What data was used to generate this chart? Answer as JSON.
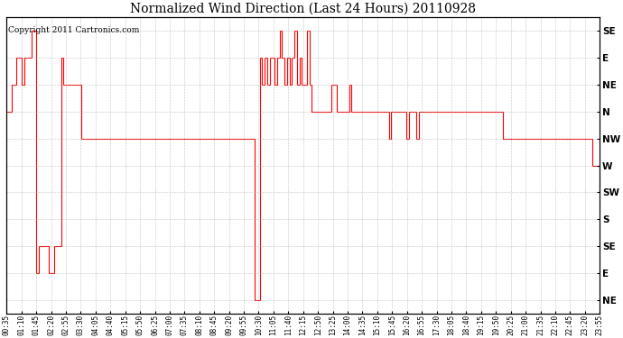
{
  "title": "Normalized Wind Direction (Last 24 Hours) 20110928",
  "copyright": "Copyright 2011 Cartronics.com",
  "line_color": "#ff0000",
  "background_color": "#ffffff",
  "grid_color": "#aaaaaa",
  "y_tick_labels_right": [
    "SE",
    "E",
    "NE",
    "N",
    "NW",
    "W",
    "SW",
    "S",
    "SE",
    "E",
    "NE"
  ],
  "y_tick_values": [
    10,
    9,
    8,
    7,
    6,
    5,
    4,
    3,
    2,
    1,
    0
  ],
  "ylim": [
    -0.5,
    10.5
  ],
  "x_tick_labels": [
    "00:35",
    "01:10",
    "01:45",
    "02:20",
    "02:55",
    "03:30",
    "04:05",
    "04:40",
    "05:15",
    "05:50",
    "06:25",
    "07:00",
    "07:35",
    "08:10",
    "08:45",
    "09:20",
    "09:55",
    "10:30",
    "11:05",
    "11:40",
    "12:15",
    "12:50",
    "13:25",
    "14:00",
    "14:35",
    "15:10",
    "15:45",
    "16:20",
    "16:55",
    "17:30",
    "18:05",
    "18:40",
    "19:15",
    "19:50",
    "20:25",
    "21:00",
    "21:35",
    "22:10",
    "22:45",
    "23:20",
    "23:55"
  ],
  "data_y": [
    7,
    7,
    8,
    8,
    9,
    9,
    8,
    9,
    9,
    9,
    10,
    10,
    1,
    2,
    2,
    2,
    2,
    1,
    1,
    2,
    2,
    2,
    9,
    8,
    8,
    8,
    8,
    8,
    8,
    8,
    6,
    6,
    6,
    6,
    6,
    6,
    6,
    6,
    6,
    6,
    6,
    6,
    6,
    6,
    6,
    6,
    6,
    6,
    6,
    6,
    6,
    6,
    6,
    6,
    6,
    6,
    6,
    6,
    6,
    6,
    6,
    6,
    6,
    6,
    6,
    6,
    6,
    6,
    6,
    6,
    6,
    6,
    6,
    6,
    6,
    6,
    6,
    6,
    6,
    6,
    6,
    6,
    6,
    6,
    6,
    6,
    6,
    6,
    6,
    6,
    6,
    6,
    6,
    6,
    6,
    6,
    6,
    6,
    6,
    6,
    0,
    0,
    9,
    8,
    9,
    8,
    9,
    9,
    8,
    9,
    10,
    9,
    8,
    9,
    8,
    9,
    10,
    8,
    9,
    8,
    8,
    10,
    8,
    7,
    7,
    7,
    7,
    7,
    7,
    7,
    7,
    8,
    8,
    7,
    7,
    7,
    7,
    7,
    8,
    7,
    7,
    7,
    7,
    7,
    7,
    7,
    7,
    7,
    7,
    7,
    7,
    7,
    7,
    7,
    6,
    7,
    7,
    7,
    7,
    7,
    7,
    6,
    7,
    7,
    7,
    6,
    7,
    7,
    7,
    7,
    7,
    7,
    7,
    7,
    7,
    7,
    7,
    7,
    7,
    7,
    7,
    7,
    7,
    7,
    7,
    7,
    7,
    7,
    7,
    7,
    7,
    7,
    7,
    7,
    7,
    7,
    7,
    7,
    7,
    7,
    6,
    6,
    6,
    6,
    6,
    6,
    6,
    6,
    6,
    6,
    6,
    6,
    6,
    6,
    6,
    6,
    6,
    6,
    6,
    6,
    6,
    6,
    6,
    6,
    6,
    6,
    6,
    6,
    6,
    6,
    6,
    6,
    6,
    6,
    6,
    6,
    5,
    5,
    5,
    4
  ]
}
